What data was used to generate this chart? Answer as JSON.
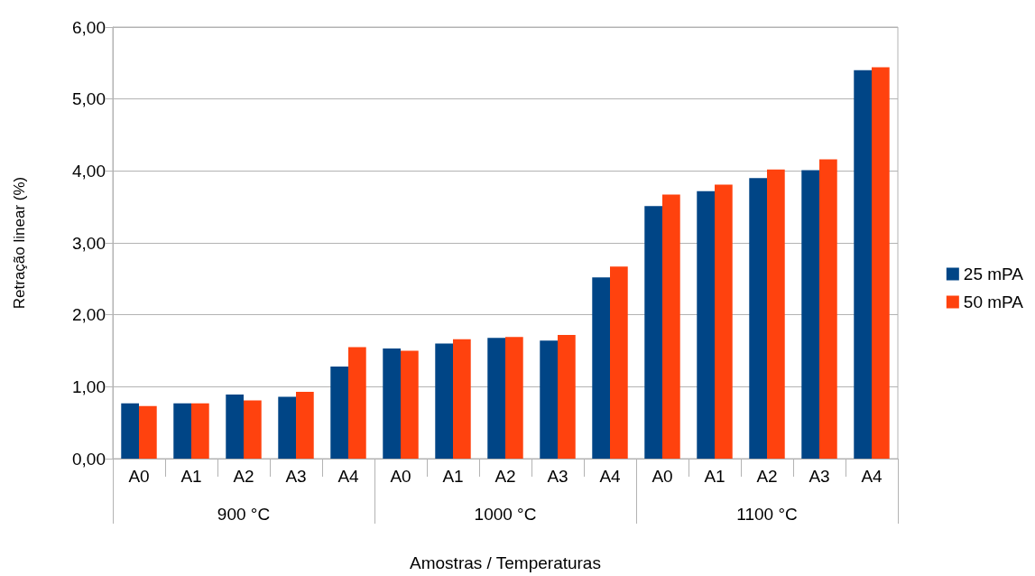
{
  "chart_data": {
    "type": "bar",
    "xlabel": "Amostras / Temperaturas",
    "ylabel": "Retração linear (%)",
    "categories": [
      "A0",
      "A1",
      "A2",
      "A3",
      "A4",
      "A0",
      "A1",
      "A2",
      "A3",
      "A4",
      "A0",
      "A1",
      "A2",
      "A3",
      "A4"
    ],
    "series": [
      {
        "name": "25 mPA",
        "color": "#004586",
        "values": [
          0.77,
          0.77,
          0.89,
          0.86,
          1.28,
          1.53,
          1.6,
          1.68,
          1.64,
          2.52,
          3.51,
          3.72,
          3.9,
          4.01,
          5.4
        ]
      },
      {
        "name": "50 mPA",
        "color": "#ff420e",
        "values": [
          0.73,
          0.77,
          0.81,
          0.93,
          1.55,
          1.5,
          1.66,
          1.69,
          1.72,
          2.67,
          3.67,
          3.81,
          4.02,
          4.16,
          5.44
        ]
      }
    ],
    "annotations": [
      "900 °C",
      "1000 °C",
      "1100 °C"
    ],
    "ylim": [
      0,
      6
    ],
    "yticks": [
      {
        "value": 0,
        "label": "0,00"
      },
      {
        "value": 1,
        "label": "1,00"
      },
      {
        "value": 2,
        "label": "2,00"
      },
      {
        "value": 3,
        "label": "3,00"
      },
      {
        "value": 4,
        "label": "4,00"
      },
      {
        "value": 5,
        "label": "5,00"
      },
      {
        "value": 6,
        "label": "6,00"
      }
    ],
    "grid": "y",
    "legend": "right"
  }
}
